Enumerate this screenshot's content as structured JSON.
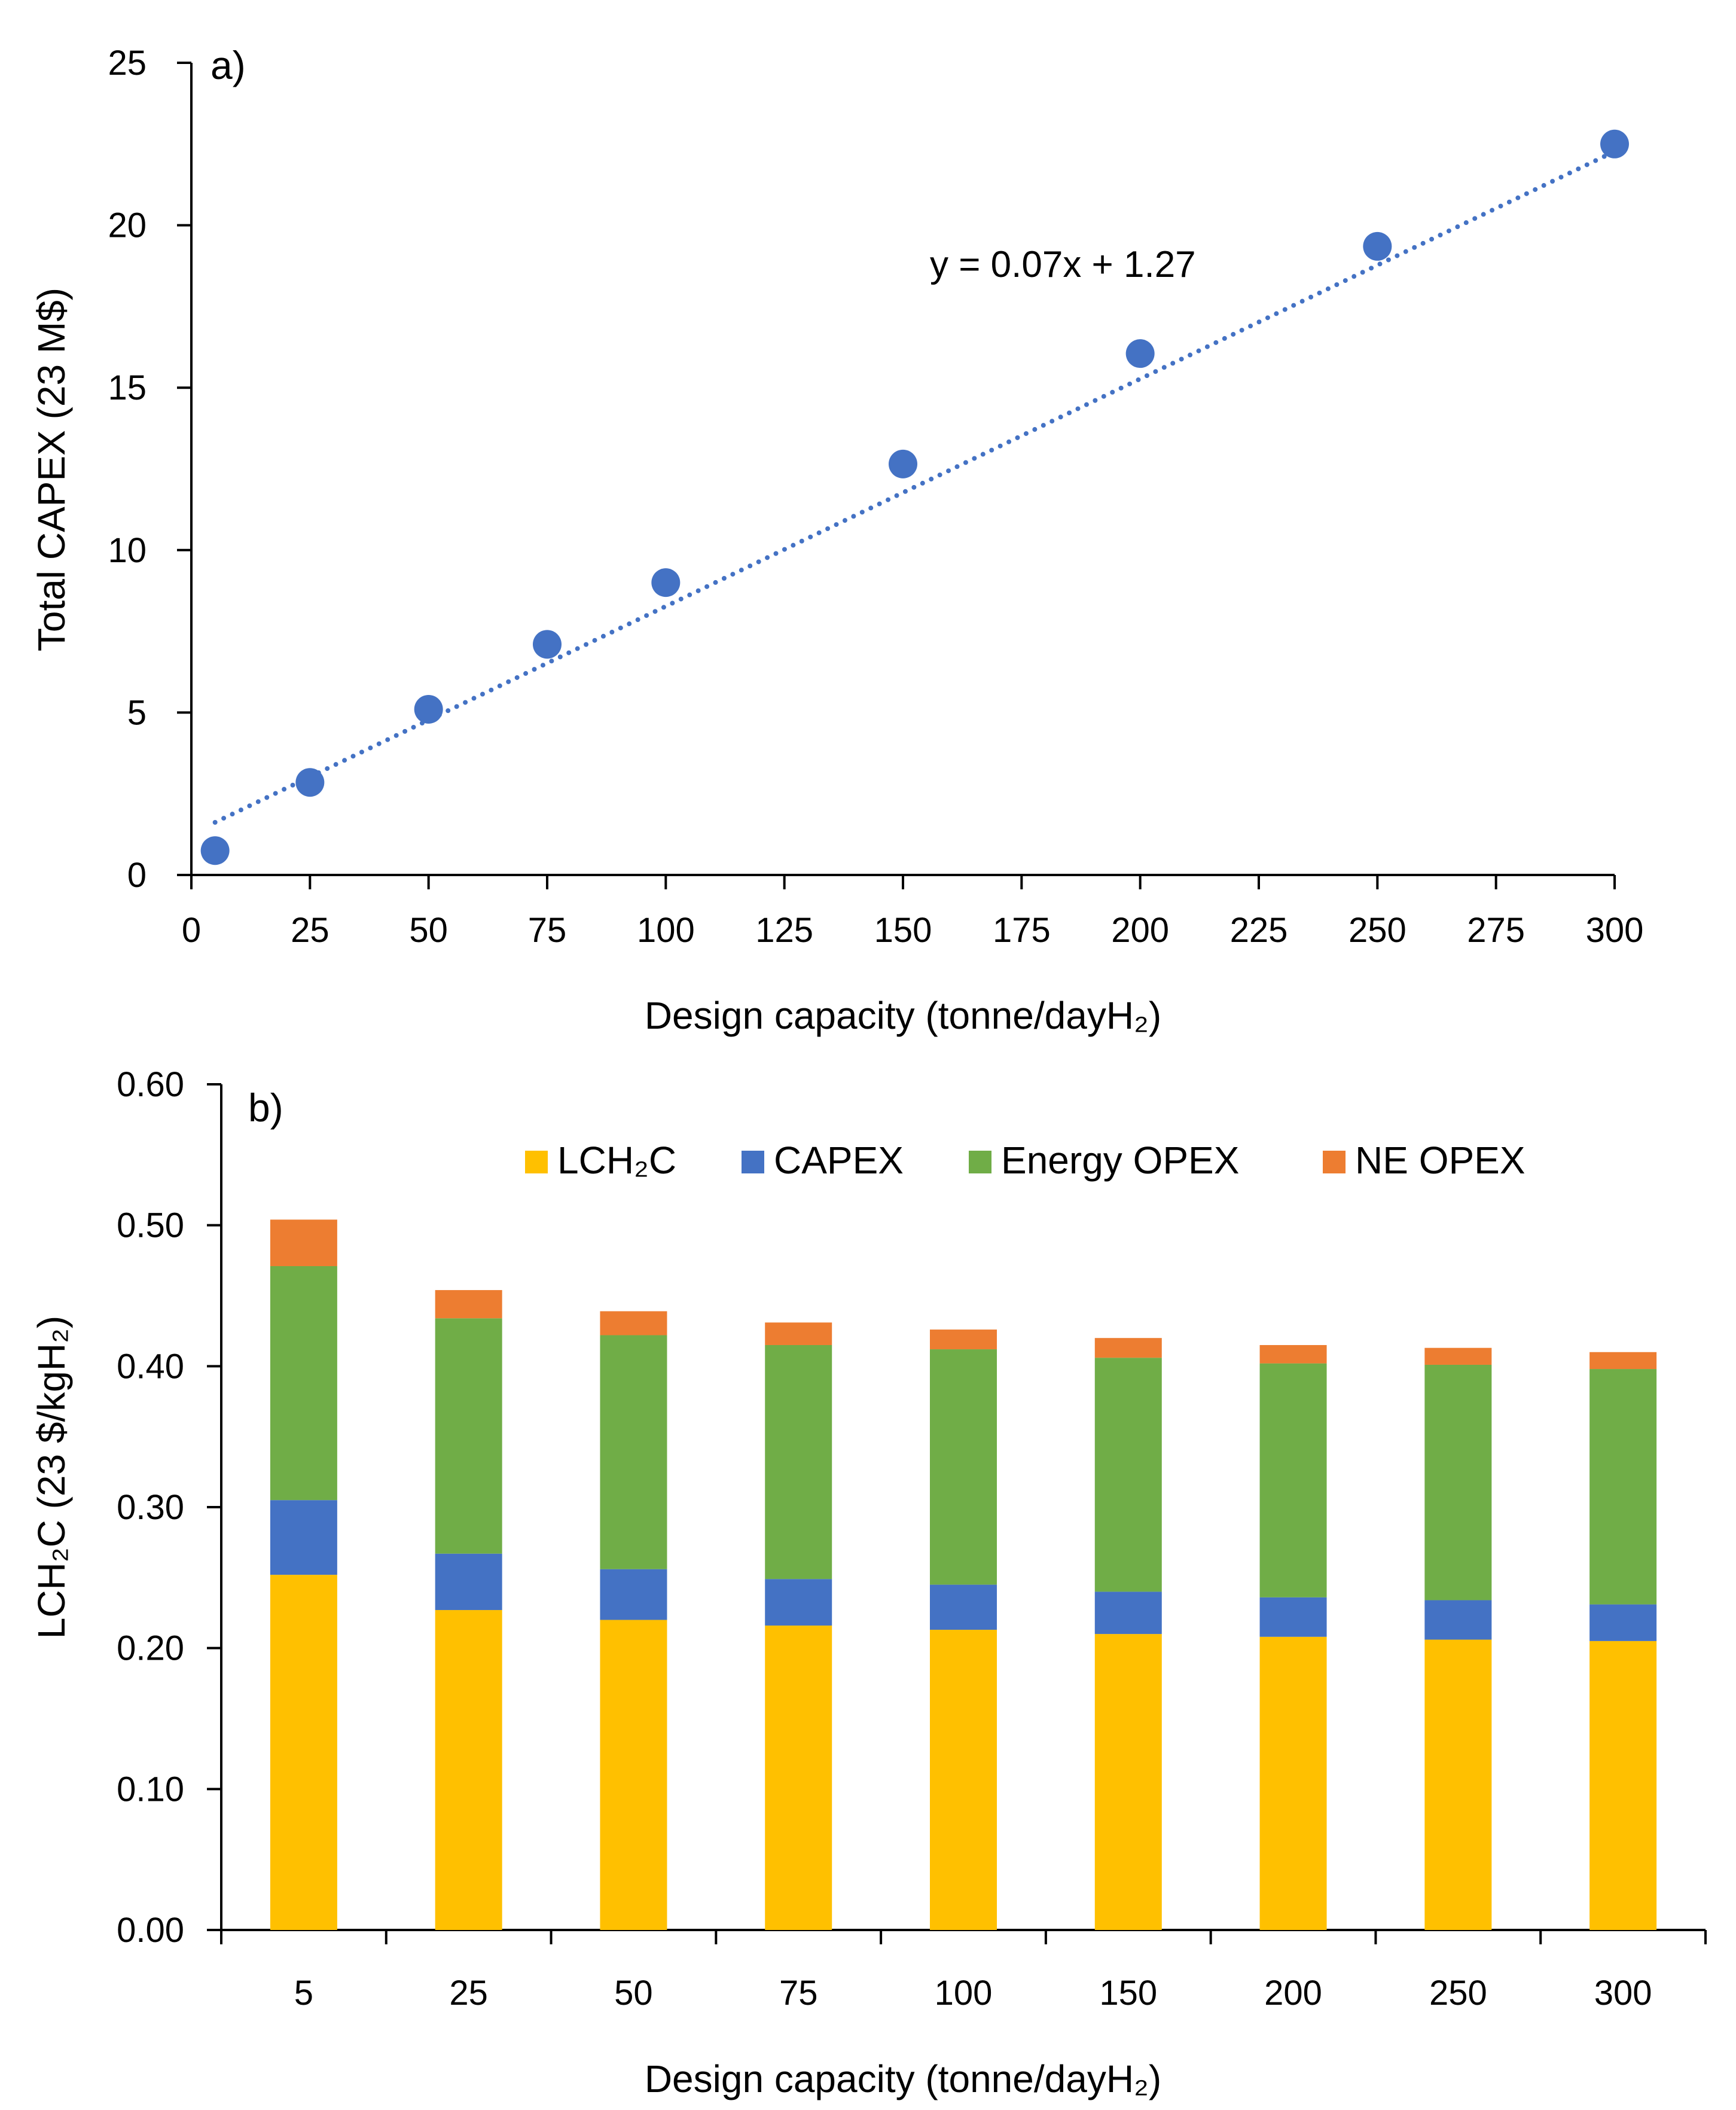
{
  "chart_data": [
    {
      "type": "scatter",
      "panel_label": "a)",
      "xlabel": "Design capacity (tonne/dayH₂)",
      "ylabel": "Total CAPEX (23 M$)",
      "xlim": [
        0,
        300
      ],
      "ylim": [
        0,
        25
      ],
      "xticks": [
        "0",
        "25",
        "50",
        "75",
        "100",
        "125",
        "150",
        "175",
        "200",
        "225",
        "250",
        "275",
        "300"
      ],
      "yticks": [
        "0",
        "5",
        "10",
        "15",
        "20",
        "25"
      ],
      "x": [
        5,
        25,
        50,
        75,
        100,
        150,
        200,
        250,
        300
      ],
      "y": [
        0.75,
        2.85,
        5.1,
        7.1,
        9.0,
        12.65,
        16.05,
        19.35,
        22.5
      ],
      "trendline": {
        "slope": 0.07,
        "intercept": 1.27,
        "style": "dotted",
        "x_range": [
          5,
          300
        ]
      },
      "trendline_label": "y = 0.07x + 1.27",
      "color": "#4472C4"
    },
    {
      "type": "bar",
      "stacked": true,
      "panel_label": "b)",
      "xlabel": "Design capacity (tonne/dayH₂)",
      "ylabel": "LCH₂C (23 $/kgH₂)",
      "ylim": [
        0,
        0.6
      ],
      "yticks": [
        "0.00",
        "0.10",
        "0.20",
        "0.30",
        "0.40",
        "0.50",
        "0.60"
      ],
      "categories": [
        "5",
        "25",
        "50",
        "75",
        "100",
        "150",
        "200",
        "250",
        "300"
      ],
      "legend_position": "top",
      "series": [
        {
          "name": "LCH₂C",
          "color": "#FFC000",
          "values": [
            0.252,
            0.227,
            0.22,
            0.216,
            0.213,
            0.21,
            0.208,
            0.206,
            0.205
          ]
        },
        {
          "name": "CAPEX",
          "color": "#4472C4",
          "values": [
            0.053,
            0.04,
            0.036,
            0.033,
            0.032,
            0.03,
            0.028,
            0.028,
            0.026
          ]
        },
        {
          "name": "Energy OPEX",
          "color": "#70AD47",
          "values": [
            0.166,
            0.167,
            0.166,
            0.166,
            0.167,
            0.166,
            0.166,
            0.167,
            0.167
          ]
        },
        {
          "name": "NE OPEX",
          "color": "#ED7D31",
          "values": [
            0.033,
            0.02,
            0.017,
            0.016,
            0.014,
            0.014,
            0.013,
            0.012,
            0.012
          ]
        }
      ]
    }
  ]
}
